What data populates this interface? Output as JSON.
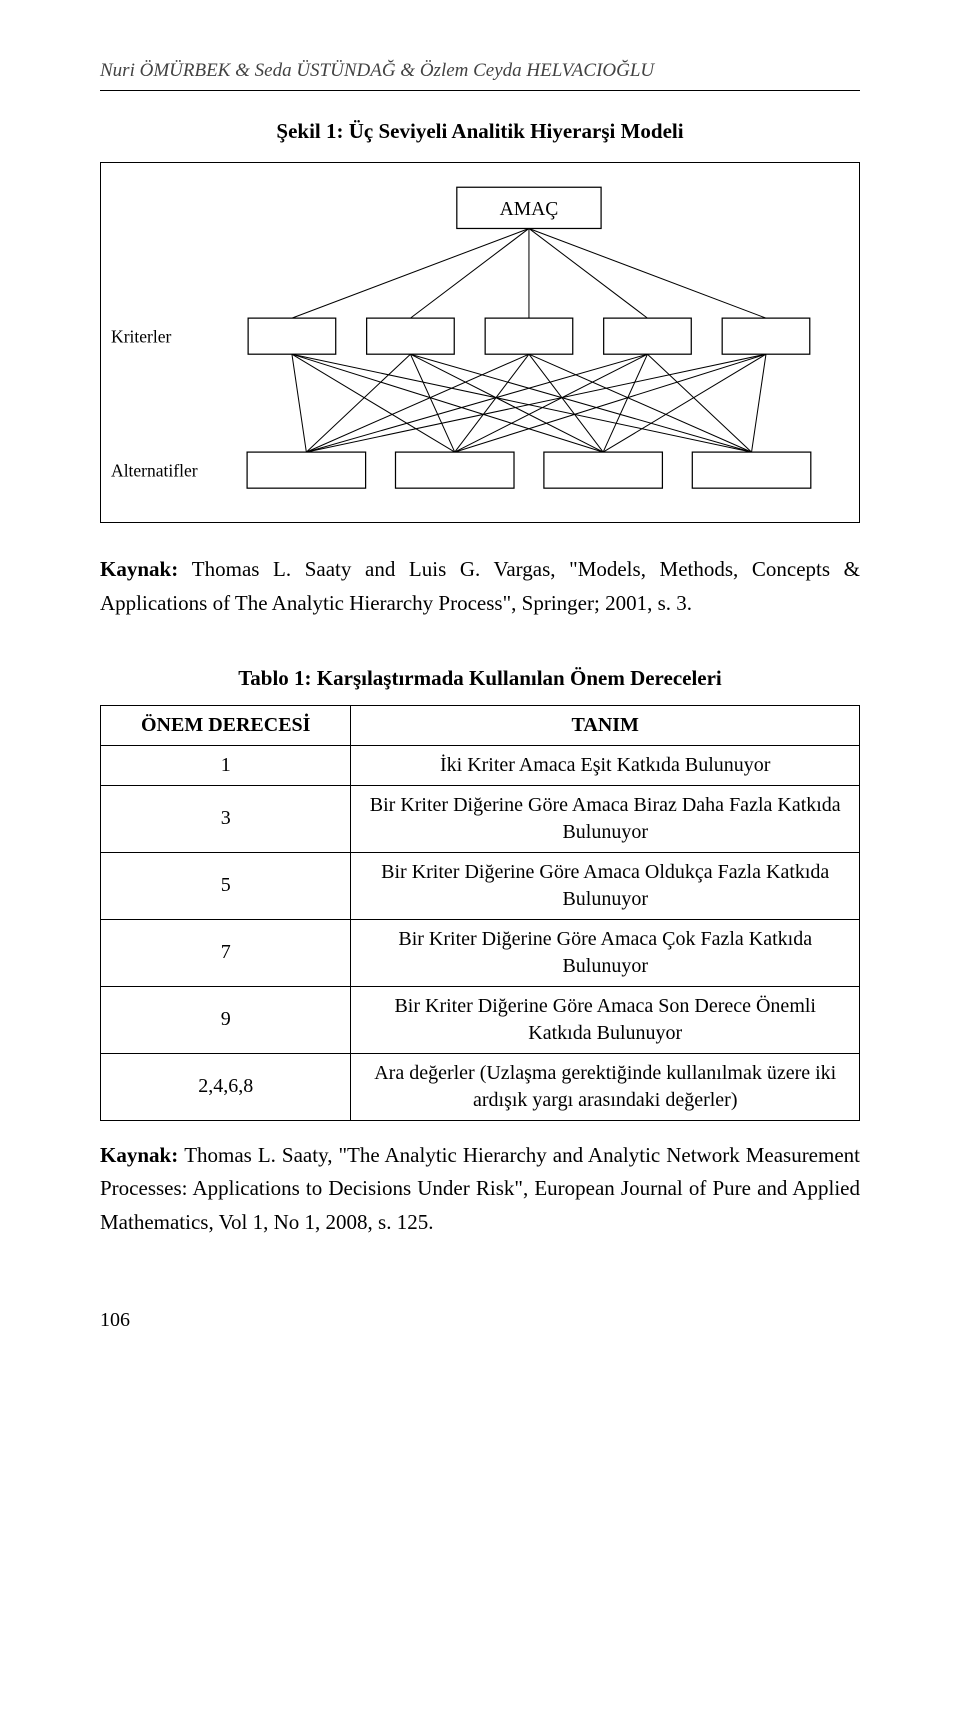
{
  "header": {
    "authors": "Nuri ÖMÜRBEK & Seda ÜSTÜNDAĞ & Özlem Ceyda HELVACIOĞLU"
  },
  "figure": {
    "title": "Şekil 1: Üç Seviyeli Analitik Hiyerarşi Modeli",
    "top_label": "AMAÇ",
    "row_labels": [
      "Kriterler",
      "Alternatifler"
    ],
    "criteria_count": 5,
    "alternatives_count": 4,
    "box_bg": "#ffffff",
    "box_border": "#000000",
    "line_color": "#000000",
    "line_width": 1
  },
  "source1": {
    "prefix_bold": "Kaynak: ",
    "text": "Thomas L. Saaty and Luis G. Vargas, \"Models, Methods, Concepts & Applications of The Analytic Hierarchy Process\", Springer; 2001, s. 3."
  },
  "table": {
    "title": "Tablo 1: Karşılaştırmada Kullanılan Önem Dereceleri",
    "columns": [
      "ÖNEM DERECESİ",
      "TANIM"
    ],
    "rows": [
      [
        "1",
        "İki Kriter Amaca Eşit Katkıda Bulunuyor"
      ],
      [
        "3",
        "Bir Kriter Diğerine Göre Amaca Biraz Daha Fazla Katkıda Bulunuyor"
      ],
      [
        "5",
        "Bir Kriter Diğerine Göre Amaca Oldukça Fazla Katkıda Bulunuyor"
      ],
      [
        "7",
        "Bir Kriter Diğerine Göre Amaca Çok Fazla Katkıda Bulunuyor"
      ],
      [
        "9",
        "Bir Kriter Diğerine Göre Amaca Son Derece Önemli Katkıda Bulunuyor"
      ],
      [
        "2,4,6,8",
        "Ara değerler (Uzlaşma gerektiğinde kullanılmak üzere iki ardışık yargı arasındaki değerler)"
      ]
    ]
  },
  "source2": {
    "prefix_bold": "Kaynak: ",
    "text": "Thomas L. Saaty, \"The Analytic Hierarchy and Analytic Network Measurement Processes: Applications to Decisions Under Risk\", European Journal of Pure and Applied Mathematics, Vol 1, No 1, 2008, s. 125."
  },
  "page_number": "106"
}
